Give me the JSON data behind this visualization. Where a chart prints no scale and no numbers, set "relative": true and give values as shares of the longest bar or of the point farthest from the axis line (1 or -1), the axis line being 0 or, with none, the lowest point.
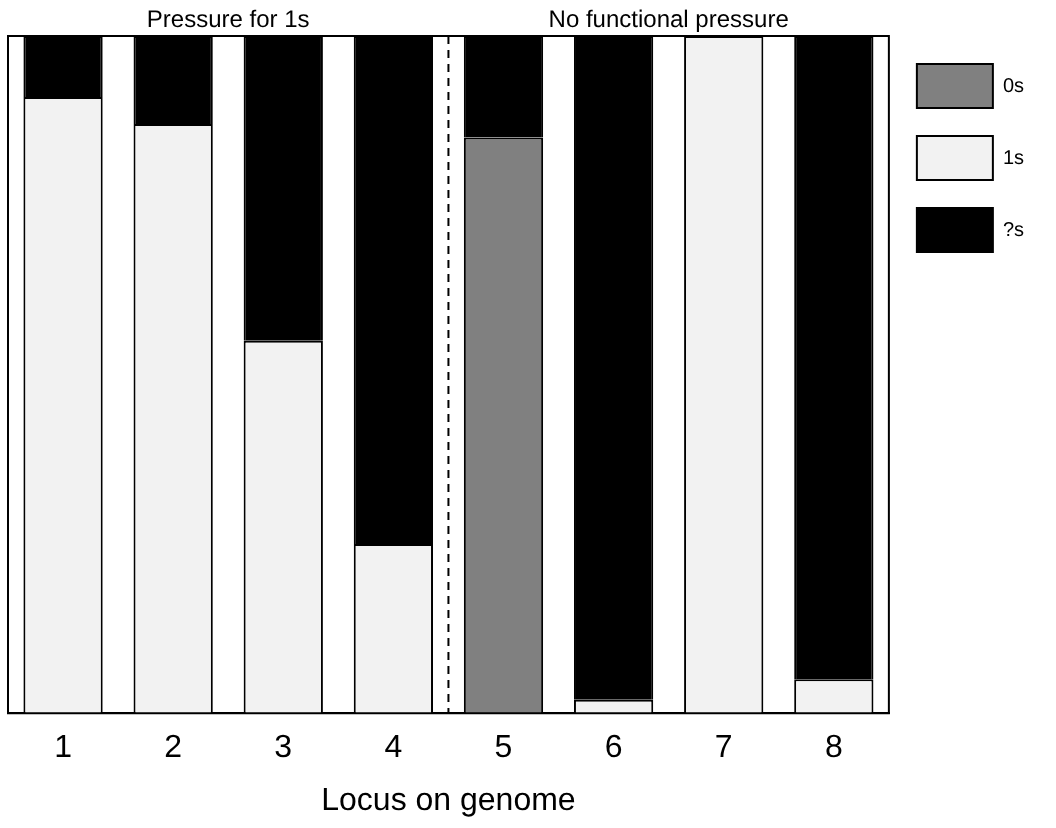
{
  "chart_data": {
    "type": "bar",
    "stacked": true,
    "relative": true,
    "xlabel": "Locus on genome",
    "categories": [
      "1",
      "2",
      "3",
      "4",
      "5",
      "6",
      "7",
      "8"
    ],
    "series": [
      {
        "name": "0s",
        "color": "#808080",
        "values": [
          0,
          0,
          0,
          0,
          0.85,
          0,
          0,
          0
        ]
      },
      {
        "name": "1s",
        "color": "#f2f2f2",
        "values": [
          0.91,
          0.87,
          0.55,
          0.25,
          0,
          0.02,
          1,
          0.05
        ]
      },
      {
        "name": "?s",
        "color": "#000000",
        "values": [
          0.09,
          0.13,
          0.45,
          0.75,
          0.15,
          0.98,
          0,
          0.95
        ]
      }
    ],
    "annotations": [
      "Pressure for 1s",
      "No functional pressure"
    ],
    "legend": "top right",
    "grid": false,
    "tick_labels": "x"
  }
}
